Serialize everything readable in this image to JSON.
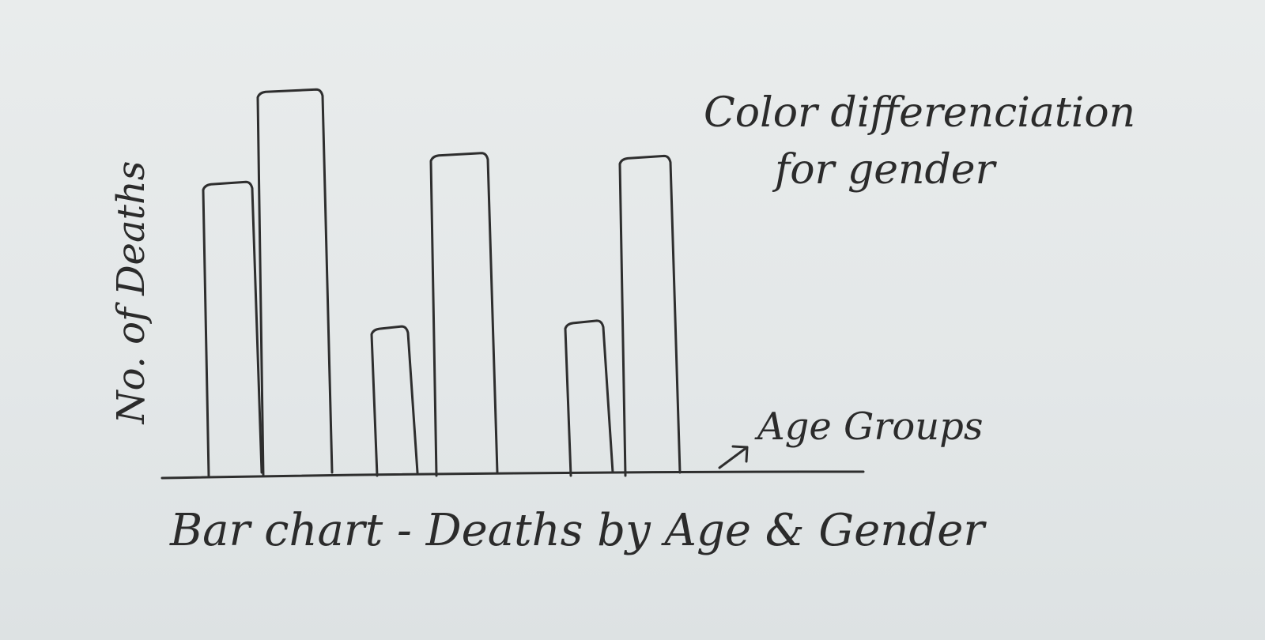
{
  "chart_data": {
    "type": "bar",
    "title": "Bar chart - Deaths by Age & Gender",
    "xlabel": "Age Groups",
    "ylabel": "No. of Deaths",
    "note": "Color differenciation for gender",
    "values": [
      10,
      13.2,
      5,
      11,
      5.2,
      10.9
    ],
    "ylim": [
      0,
      14
    ],
    "grid": false,
    "legend": "none"
  }
}
